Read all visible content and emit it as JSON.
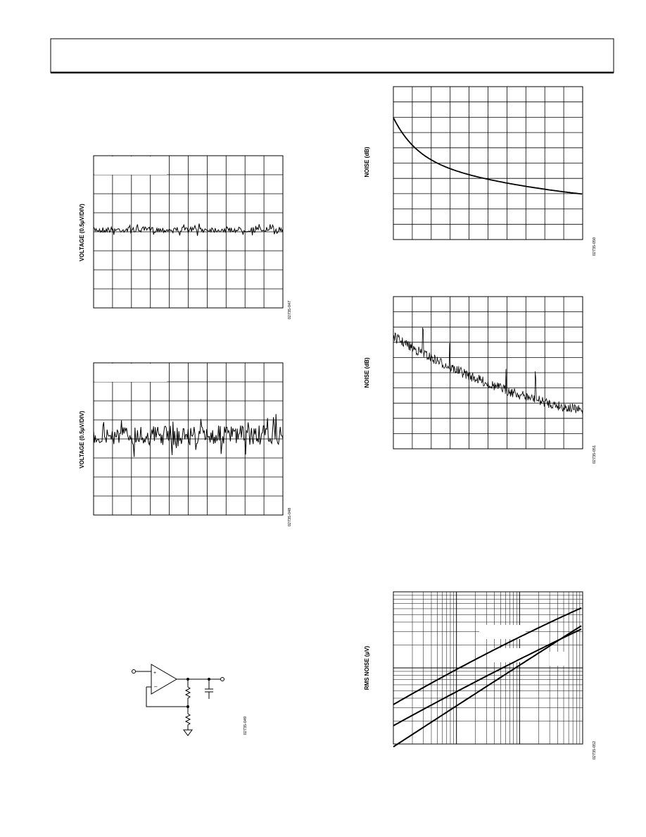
{
  "figures": [
    {
      "y_label": "VOLTAGE (0.5µV/DIV)",
      "id": "02735-047"
    },
    {
      "y_label": "VOLTAGE (0.5µV/DIV)",
      "id": "02735-048"
    },
    {
      "id": "02735-049"
    },
    {
      "y_label": "NOISE (dB)",
      "id": "02735-050"
    },
    {
      "y_label": "NOISE (dB)",
      "id": "02735-051"
    },
    {
      "y_label": "RMS NOISE (µV)",
      "id": "02735-052"
    }
  ]
}
